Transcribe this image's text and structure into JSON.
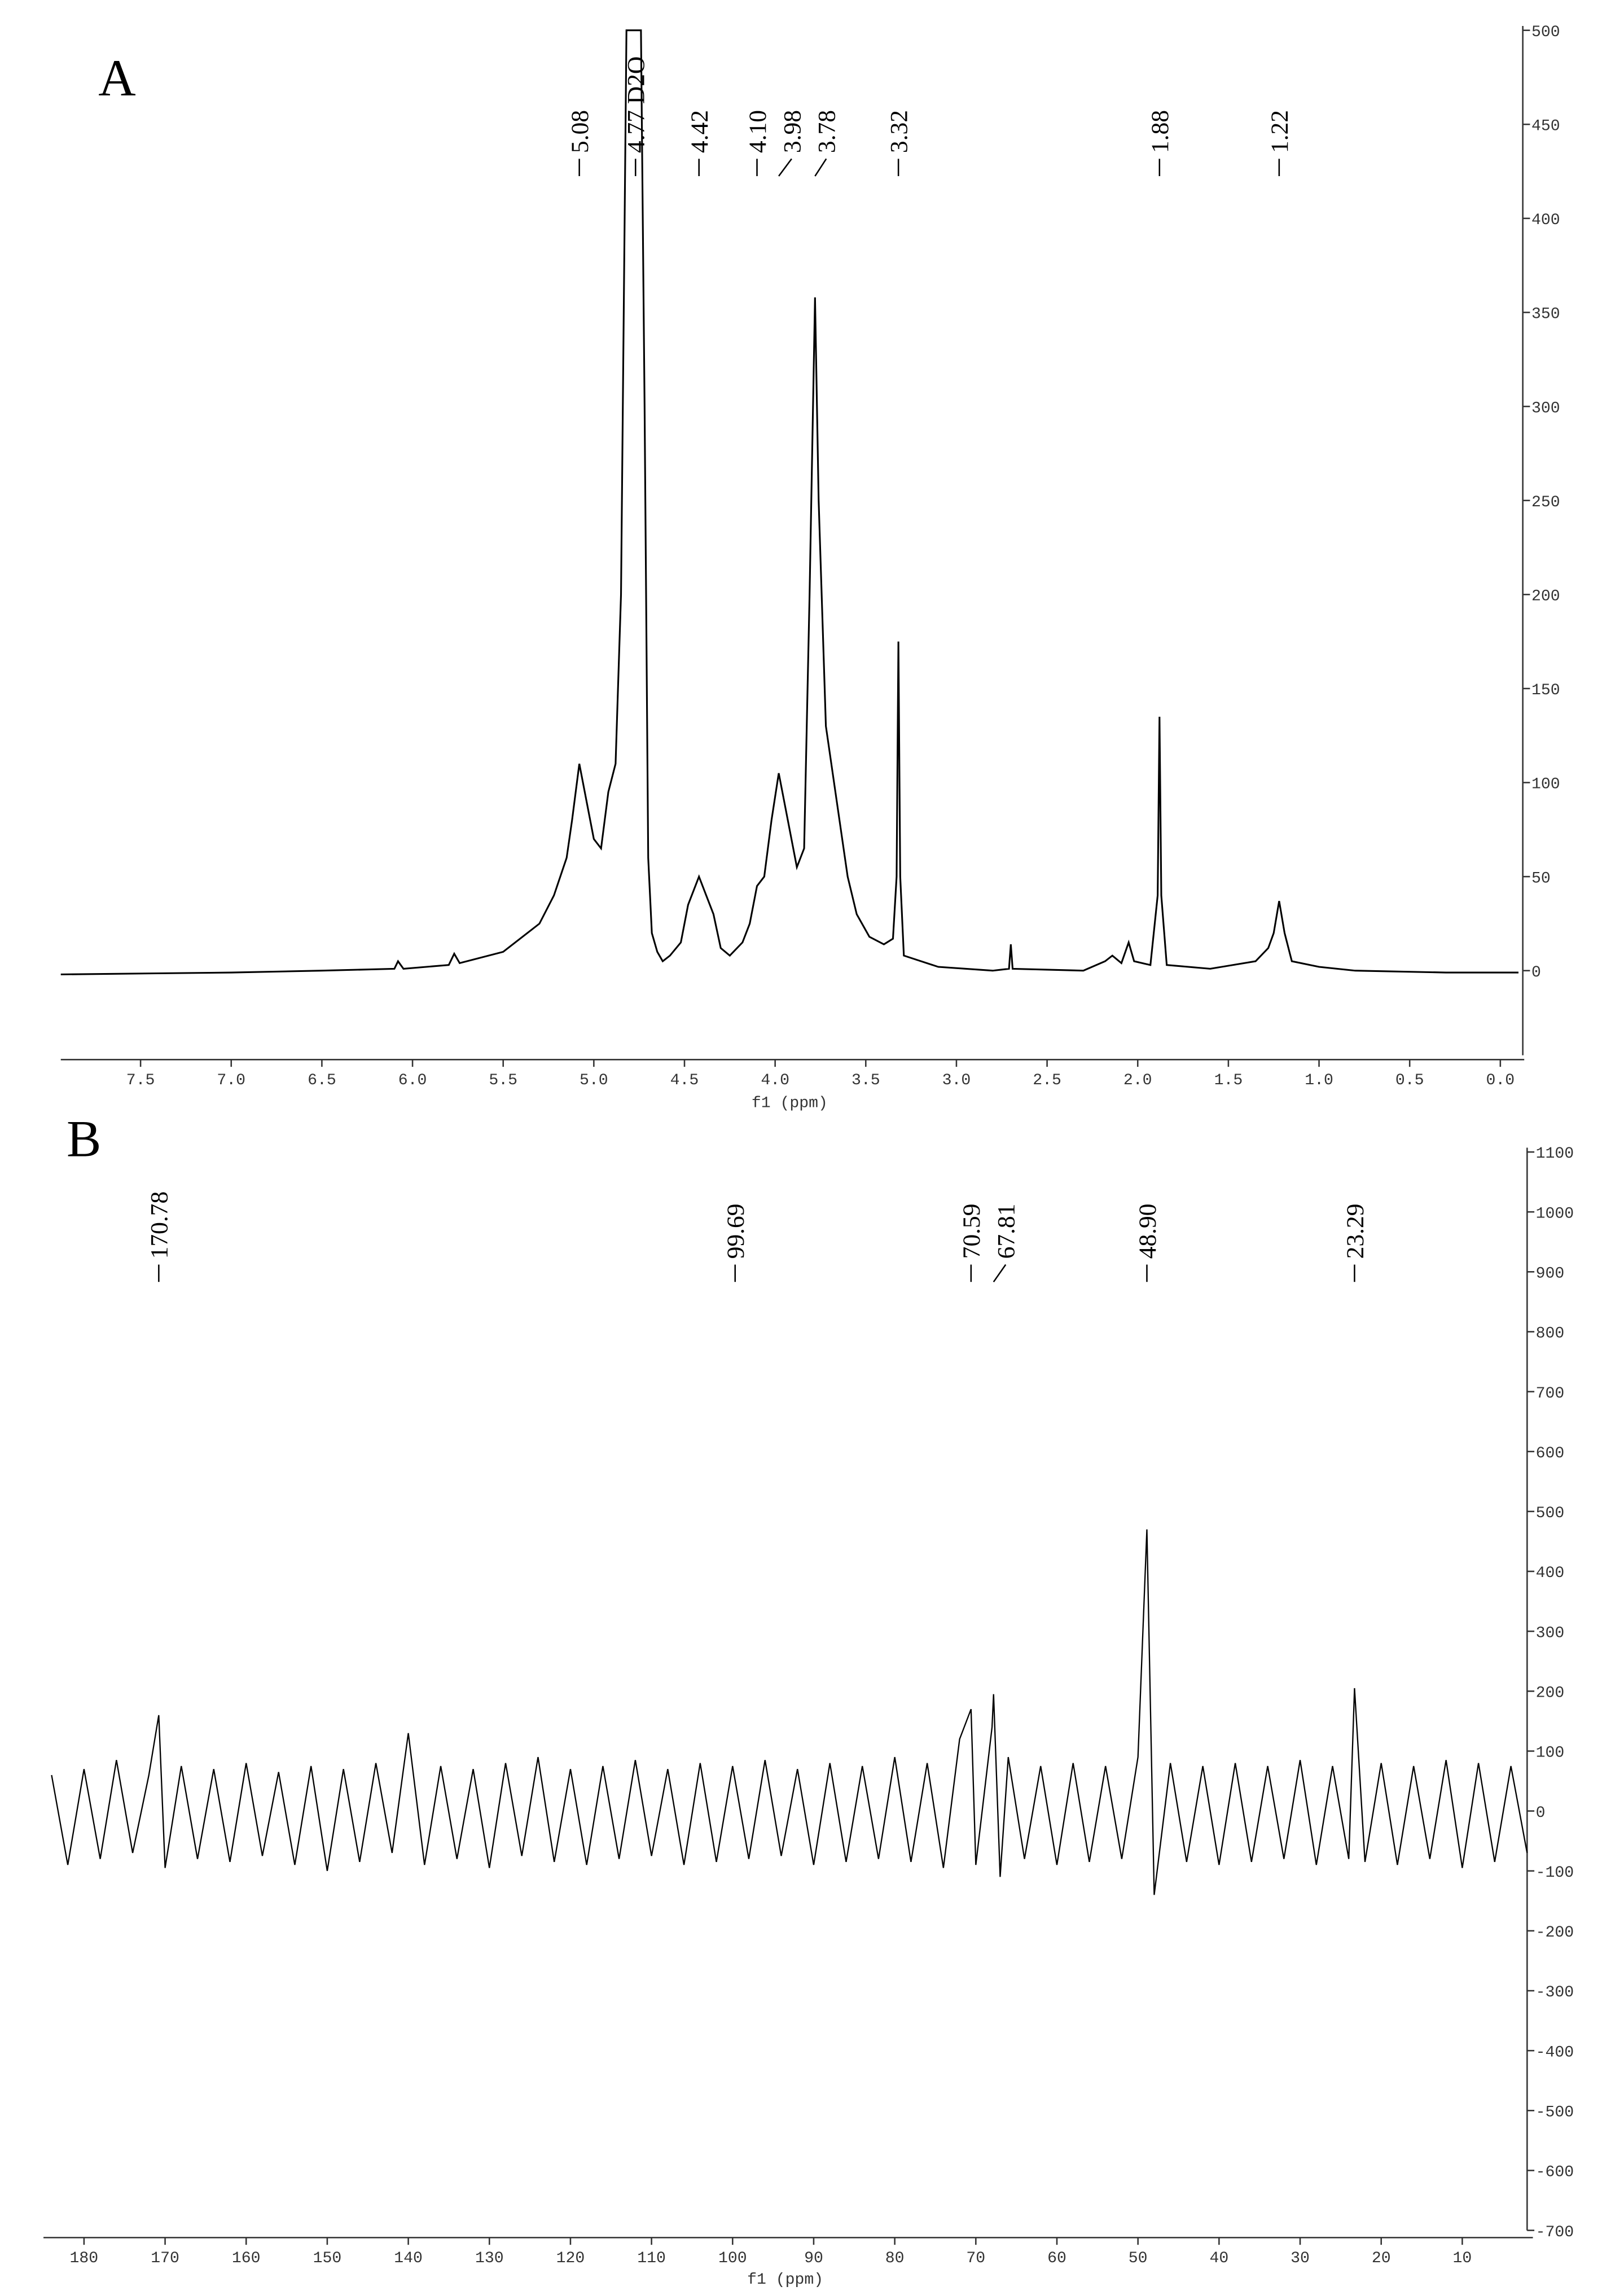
{
  "chart_data": [
    {
      "type": "line",
      "panel_label": "A",
      "x_label": "f1 (ppm)",
      "color": "#000000",
      "xlim": [
        7.94,
        -0.1
      ],
      "xticks": [
        7.5,
        {
          "value": 7,
          "label": "7.0"
        },
        6.5,
        {
          "value": 6,
          "label": "6.0"
        },
        5.5,
        {
          "value": 5,
          "label": "5.0"
        },
        4.5,
        {
          "value": 4,
          "label": "4.0"
        },
        3.5,
        {
          "value": 3,
          "label": "3.0"
        },
        2.5,
        {
          "value": 2,
          "label": "2.0"
        },
        1.5,
        {
          "value": 1,
          "label": "1.0"
        },
        0.5,
        {
          "value": 0,
          "label": "0.0"
        }
      ],
      "ylim": [
        -45,
        500
      ],
      "yticks": [
        0,
        50,
        100,
        150,
        200,
        250,
        300,
        350,
        400,
        450,
        500
      ],
      "peak_labels": [
        "5.08",
        "4.77 D2O",
        "4.42",
        "4.10",
        "3.98",
        "3.78",
        "3.32",
        "1.88",
        "1.22"
      ],
      "x": [
        7.94,
        7.0,
        6.5,
        6.1,
        6.08,
        6.05,
        5.8,
        5.77,
        5.74,
        5.5,
        5.3,
        5.22,
        5.15,
        5.12,
        5.08,
        5.04,
        5.0,
        4.96,
        4.92,
        4.88,
        4.85,
        4.82,
        4.77,
        4.74,
        4.72,
        4.7,
        4.68,
        4.65,
        4.62,
        4.58,
        4.52,
        4.48,
        4.42,
        4.38,
        4.34,
        4.3,
        4.25,
        4.18,
        4.14,
        4.1,
        4.06,
        4.02,
        3.98,
        3.94,
        3.88,
        3.84,
        3.81,
        3.78,
        3.76,
        3.72,
        3.66,
        3.6,
        3.55,
        3.48,
        3.4,
        3.35,
        3.33,
        3.32,
        3.31,
        3.29,
        3.1,
        2.8,
        2.71,
        2.7,
        2.69,
        2.3,
        2.18,
        2.14,
        2.09,
        2.05,
        2.02,
        1.93,
        1.89,
        1.88,
        1.87,
        1.84,
        1.6,
        1.35,
        1.28,
        1.25,
        1.22,
        1.19,
        1.15,
        1.0,
        0.8,
        0.3,
        -0.1
      ],
      "values": [
        -2,
        -1,
        0,
        1,
        5,
        1,
        3,
        9,
        4,
        10,
        25,
        40,
        60,
        80,
        110,
        90,
        70,
        65,
        95,
        110,
        200,
        500,
        500,
        500,
        300,
        60,
        20,
        10,
        5,
        8,
        15,
        35,
        50,
        40,
        30,
        12,
        8,
        15,
        25,
        45,
        50,
        80,
        105,
        85,
        55,
        65,
        200,
        358,
        250,
        130,
        90,
        50,
        30,
        18,
        14,
        17,
        50,
        175,
        50,
        8,
        2,
        0,
        1,
        14,
        1,
        0,
        5,
        8,
        4,
        15,
        5,
        3,
        40,
        135,
        40,
        3,
        1,
        5,
        12,
        20,
        37,
        20,
        5,
        2,
        0,
        -1,
        -1
      ]
    },
    {
      "type": "line",
      "panel_label": "B",
      "x_label": "f1 (ppm)",
      "color": "#000000",
      "xlim": [
        185,
        2
      ],
      "xticks": [
        180,
        170,
        160,
        150,
        140,
        130,
        120,
        110,
        100,
        90,
        80,
        70,
        60,
        50,
        40,
        30,
        20,
        10
      ],
      "ylim": [
        -700,
        1100
      ],
      "yticks": [
        -700,
        -600,
        -500,
        -400,
        -300,
        -200,
        -100,
        0,
        100,
        200,
        300,
        400,
        500,
        600,
        700,
        800,
        900,
        1000,
        1100
      ],
      "peak_labels": [
        "170.78",
        "99.69",
        "70.59",
        "67.81",
        "48.90",
        "23.29"
      ],
      "x": [
        184,
        182,
        180,
        178,
        176,
        174,
        172,
        170.78,
        170,
        168,
        166,
        164,
        162,
        160,
        158,
        156,
        154,
        152,
        150,
        148,
        146,
        144,
        142,
        140,
        138,
        136,
        134,
        132,
        130,
        128,
        126,
        124,
        122,
        120,
        118,
        116,
        114,
        112,
        110,
        108,
        106,
        104,
        102,
        100,
        98,
        96,
        94,
        92,
        90,
        88,
        86,
        84,
        82,
        80,
        78,
        76,
        74,
        72,
        70.59,
        70,
        68,
        67.81,
        67,
        66,
        64,
        62,
        60,
        58,
        56,
        54,
        52,
        50,
        48.9,
        48,
        46,
        44,
        42,
        40,
        38,
        36,
        34,
        32,
        30,
        28,
        26,
        24,
        23.29,
        22,
        20,
        18,
        16,
        14,
        12,
        10,
        8,
        6,
        4,
        2
      ],
      "values": [
        60,
        -90,
        70,
        -80,
        85,
        -70,
        60,
        160,
        -95,
        75,
        -80,
        70,
        -85,
        80,
        -75,
        65,
        -90,
        75,
        -100,
        70,
        -85,
        80,
        -70,
        130,
        -90,
        75,
        -80,
        70,
        -95,
        80,
        -75,
        90,
        -85,
        70,
        -90,
        75,
        -80,
        85,
        -75,
        70,
        -90,
        80,
        -85,
        75,
        -80,
        85,
        -75,
        70,
        -90,
        80,
        -85,
        75,
        -80,
        90,
        -85,
        80,
        -95,
        120,
        170,
        -90,
        140,
        195,
        -110,
        90,
        -80,
        75,
        -90,
        80,
        -85,
        75,
        -80,
        90,
        470,
        -140,
        80,
        -85,
        75,
        -90,
        80,
        -85,
        75,
        -80,
        85,
        -90,
        75,
        -80,
        205,
        -85,
        80,
        -90,
        75,
        -80,
        85,
        -95,
        80,
        -85,
        75,
        -70
      ]
    }
  ]
}
